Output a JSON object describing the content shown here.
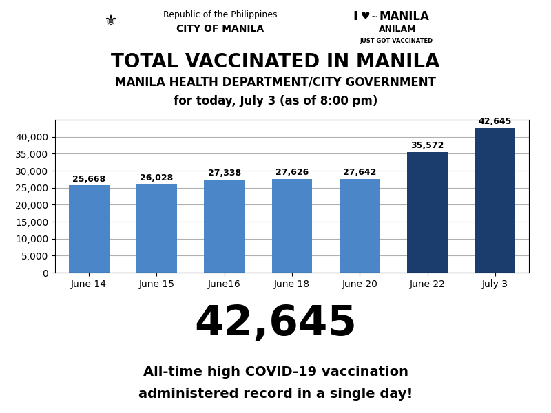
{
  "chart_data": {
    "type": "bar",
    "title": "TOTAL VACCINATED IN MANILA",
    "subtitle": "MANILA HEALTH DEPARTMENT/CITY GOVERNMENT",
    "annotations": [
      "⚜",
      "Republic of the Philippines",
      "CITY OF MANILA",
      "I",
      "♥",
      "~",
      "MANILA",
      "ANILAМ",
      "JUST GOT VACCINATED",
      "for today, July 3 (as of 8:00 pm)",
      "42,645",
      "All-time high COVID-19 vaccination",
      "administered record in a single day!"
    ],
    "categories": [
      "June 14",
      "June 15",
      "June16",
      "June 18",
      "June 20",
      "June 22",
      "July 3"
    ],
    "values": [
      25668,
      26028,
      27338,
      27626,
      27642,
      35572,
      42645
    ],
    "value_labels": [
      "25,668",
      "26,028",
      "27,338",
      "27,626",
      "27,642",
      "35,572",
      "42,645"
    ],
    "data_labels": true,
    "colors": [
      "#4a86c8",
      "#4a86c8",
      "#4a86c8",
      "#4a86c8",
      "#4a86c8",
      "#1a3d6e",
      "#1a3d6e"
    ],
    "ylim": [
      0,
      45000
    ],
    "yticks": [
      0,
      {
        "value": 5000,
        "label": "5,000"
      },
      {
        "value": 10000,
        "label": "10,000"
      },
      {
        "value": 15000,
        "label": "15,000"
      },
      {
        "value": 20000,
        "label": "20,000"
      },
      {
        "value": 25000,
        "label": "25,000"
      },
      {
        "value": 30000,
        "label": "30,000"
      },
      {
        "value": 35000,
        "label": "35,000"
      },
      {
        "value": 40000,
        "label": "40,000"
      }
    ],
    "grid": true
  }
}
